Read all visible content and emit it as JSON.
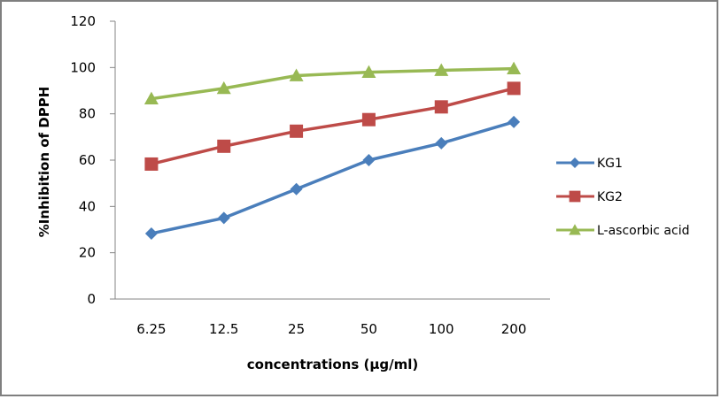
{
  "chart_data": {
    "type": "line",
    "title": "",
    "xlabel": "concentrations (µg/ml)",
    "ylabel": "%Inhibition of DPPH",
    "categories": [
      "6.25",
      "12.5",
      "25",
      "50",
      "100",
      "200"
    ],
    "ylim": [
      0,
      120
    ],
    "yticks": [
      "0",
      "20",
      "40",
      "60",
      "80",
      "100",
      "120"
    ],
    "grid": false,
    "legend_position": "right",
    "series": [
      {
        "name": "KG1",
        "color": "#4a7ebb",
        "marker": "diamond",
        "values": [
          28.3,
          35.0,
          47.5,
          60.0,
          67.3,
          76.5
        ]
      },
      {
        "name": "KG2",
        "color": "#be4b48",
        "marker": "square",
        "values": [
          58.3,
          66.0,
          72.5,
          77.5,
          83.0,
          91.0
        ]
      },
      {
        "name": "L-ascorbic acid",
        "color": "#98b954",
        "marker": "triangle",
        "values": [
          86.5,
          91.0,
          96.5,
          98.0,
          98.8,
          99.5
        ]
      }
    ]
  }
}
